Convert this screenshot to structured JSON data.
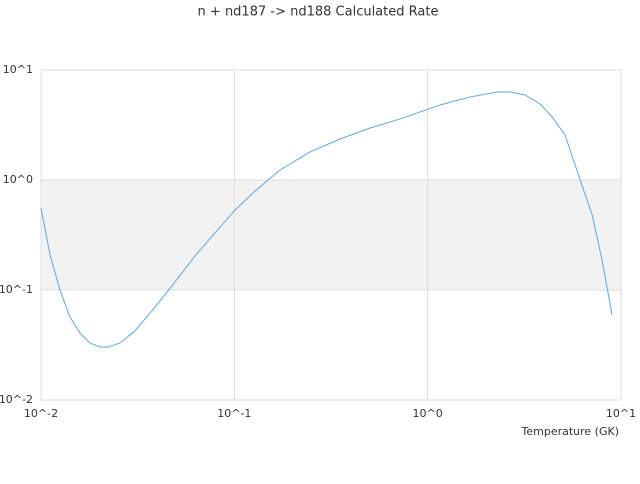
{
  "chart_data": {
    "type": "line",
    "title": "n + nd187 -> nd188 Calculated Rate",
    "x_label": "Temperature (GK)",
    "x": [
      0.01,
      0.01114,
      0.01254,
      0.0141,
      0.0159,
      0.0179,
      0.0202,
      0.0222,
      0.0256,
      0.0306,
      0.0389,
      0.0493,
      0.0626,
      0.0794,
      0.101,
      0.128,
      0.172,
      0.246,
      0.352,
      0.504,
      0.72,
      1.16,
      1.66,
      2.28,
      2.67,
      3.19,
      3.82,
      4.41,
      5.14,
      6.15,
      7.1,
      7.98,
      8.99
    ],
    "series": [
      {
        "color": "#5aa6e8",
        "values": [
          0.557,
          0.208,
          0.1,
          0.0569,
          0.0407,
          0.033,
          0.0303,
          0.0303,
          0.033,
          0.0424,
          0.07,
          0.118,
          0.204,
          0.33,
          0.534,
          0.794,
          1.23,
          1.8,
          2.36,
          2.97,
          3.59,
          4.81,
          5.69,
          6.31,
          6.31,
          5.93,
          4.91,
          3.74,
          2.56,
          1.0,
          0.481,
          0.187,
          0.0593
        ]
      }
    ],
    "xlim": [
      0.01,
      10
    ],
    "ylim": [
      0.01,
      10
    ],
    "xscale": "log",
    "yscale": "log",
    "xticks": [
      {
        "value": 0.01,
        "label": "10^-2"
      },
      {
        "value": 0.1,
        "label": "10^-1"
      },
      {
        "value": 1,
        "label": "10^0"
      },
      {
        "value": 10,
        "label": "10^1"
      }
    ],
    "yticks": [
      {
        "value": 0.01,
        "label": "10^-2"
      },
      {
        "value": 0.1,
        "label": "10^-1"
      },
      {
        "value": 1,
        "label": "10^0"
      },
      {
        "value": 10,
        "label": "10^1"
      }
    ],
    "grid": true
  }
}
